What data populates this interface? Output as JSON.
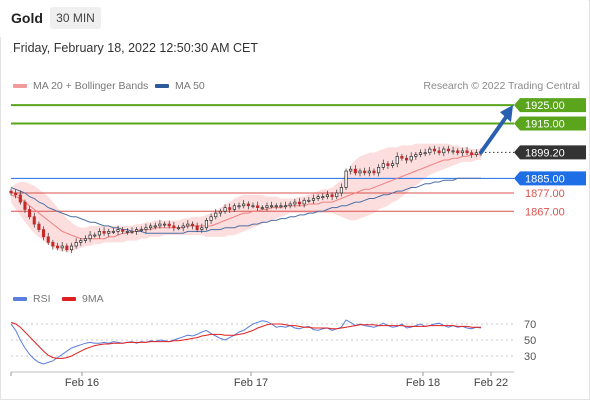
{
  "header": {
    "symbol": "Gold",
    "timeframe": "30 MIN"
  },
  "datetime": "Friday, February 18, 2022 12:50:30 AM CET",
  "legend": {
    "ma20_label": "MA 20 + Bollinger Bands",
    "ma50_label": "MA 50",
    "rsi_label": "RSI",
    "ma9_label": "9MA"
  },
  "credit": "Research © 2022 Trading Central",
  "colors": {
    "green": "#5aa51c",
    "blue": "#1e6fe6",
    "red": "#d9534f",
    "dark": "#333333",
    "bollinger_fill": "#fbd3d3",
    "ma20": "#f08080",
    "ma50": "#4b6fa5",
    "rsi": "#5b7fdc",
    "ma9": "#e02020",
    "arrow": "#2a5fb0"
  },
  "chart_data": [
    {
      "type": "candlestick",
      "title": "",
      "xlabel": "",
      "ylabel": "",
      "x_tick_labels": [
        "Feb 16",
        "Feb 17",
        "Feb 18",
        "Feb 22"
      ],
      "ylim": [
        1836,
        1930
      ],
      "grid": false,
      "legend_position": "top-left",
      "levels": [
        {
          "value": 1925.0,
          "label": "1925.00",
          "style": "green-line"
        },
        {
          "value": 1915.0,
          "label": "1915.00",
          "style": "green-line"
        },
        {
          "value": 1899.2,
          "label": "1899.20",
          "style": "current-price"
        },
        {
          "value": 1885.0,
          "label": "1885.00",
          "style": "blue-line"
        },
        {
          "value": 1877.0,
          "label": "1877.00",
          "style": "red-line"
        },
        {
          "value": 1867.0,
          "label": "1867.00",
          "style": "red-line"
        }
      ],
      "close": [
        1877,
        1876,
        1872,
        1868,
        1864,
        1860,
        1857,
        1853,
        1850,
        1848,
        1847,
        1848,
        1846,
        1848,
        1850,
        1851,
        1852,
        1854,
        1854,
        1856,
        1855,
        1856,
        1856,
        1857,
        1856,
        1856,
        1856,
        1857,
        1857,
        1858,
        1859,
        1859,
        1860,
        1860,
        1859,
        1858,
        1858,
        1859,
        1860,
        1859,
        1857,
        1858,
        1862,
        1864,
        1866,
        1867,
        1869,
        1868,
        1870,
        1870,
        1871,
        1870,
        1870,
        1869,
        1869,
        1870,
        1870,
        1870,
        1870,
        1870,
        1871,
        1872,
        1871,
        1873,
        1873,
        1874,
        1875,
        1875,
        1876,
        1875,
        1877,
        1880,
        1889,
        1890,
        1888,
        1889,
        1888,
        1889,
        1888,
        1891,
        1893,
        1892,
        1893,
        1897,
        1896,
        1895,
        1897,
        1898,
        1899,
        1899,
        1901,
        1900,
        1899,
        1901,
        1900,
        1900,
        1899,
        1900,
        1899,
        1898,
        1899,
        1899.2
      ],
      "ma20": [
        1876,
        1875,
        1874,
        1872,
        1870,
        1868,
        1866,
        1864,
        1862,
        1860,
        1858,
        1856,
        1855,
        1854,
        1853,
        1852,
        1852,
        1852,
        1852,
        1852,
        1852,
        1853,
        1853,
        1854,
        1855,
        1855,
        1856,
        1856,
        1857,
        1857,
        1857,
        1858,
        1858,
        1858,
        1858,
        1858,
        1858,
        1858,
        1859,
        1859,
        1859,
        1859,
        1859,
        1859,
        1860,
        1861,
        1862,
        1863,
        1864,
        1865,
        1866,
        1866,
        1867,
        1867,
        1868,
        1868,
        1869,
        1869,
        1869,
        1870,
        1870,
        1870,
        1870,
        1870,
        1871,
        1871,
        1871,
        1872,
        1872,
        1872,
        1873,
        1874,
        1875,
        1876,
        1877,
        1878,
        1879,
        1879,
        1880,
        1881,
        1882,
        1883,
        1884,
        1885,
        1886,
        1887,
        1888,
        1889,
        1890,
        1891,
        1892,
        1893,
        1894,
        1895,
        1895,
        1896,
        1896,
        1897,
        1897,
        1898,
        1898,
        1898
      ],
      "boll_upper": [
        1880,
        1882,
        1883,
        1883,
        1882,
        1881,
        1879,
        1877,
        1875,
        1872,
        1869,
        1866,
        1863,
        1861,
        1859,
        1858,
        1858,
        1859,
        1859,
        1859,
        1859,
        1859,
        1859,
        1859,
        1859,
        1859,
        1859,
        1860,
        1860,
        1861,
        1861,
        1862,
        1862,
        1862,
        1862,
        1862,
        1862,
        1863,
        1863,
        1864,
        1864,
        1864,
        1865,
        1866,
        1867,
        1869,
        1871,
        1872,
        1874,
        1875,
        1876,
        1876,
        1876,
        1876,
        1876,
        1875,
        1875,
        1875,
        1874,
        1874,
        1874,
        1874,
        1875,
        1875,
        1876,
        1877,
        1878,
        1879,
        1879,
        1880,
        1882,
        1884,
        1888,
        1892,
        1895,
        1897,
        1898,
        1899,
        1899,
        1900,
        1901,
        1902,
        1902,
        1902,
        1903,
        1903,
        1903,
        1904,
        1904,
        1904,
        1904,
        1904,
        1904,
        1904,
        1904,
        1903,
        1903,
        1902,
        1902,
        1901,
        1901,
        1901
      ],
      "boll_lower": [
        1872,
        1868,
        1865,
        1861,
        1858,
        1855,
        1853,
        1851,
        1849,
        1847,
        1846,
        1845,
        1845,
        1845,
        1846,
        1847,
        1848,
        1848,
        1849,
        1849,
        1850,
        1850,
        1850,
        1850,
        1850,
        1851,
        1851,
        1851,
        1852,
        1852,
        1853,
        1853,
        1853,
        1854,
        1854,
        1854,
        1854,
        1854,
        1854,
        1854,
        1854,
        1854,
        1853,
        1853,
        1853,
        1853,
        1853,
        1854,
        1854,
        1855,
        1856,
        1857,
        1858,
        1859,
        1860,
        1861,
        1862,
        1863,
        1864,
        1865,
        1866,
        1866,
        1866,
        1866,
        1866,
        1866,
        1866,
        1866,
        1866,
        1866,
        1865,
        1864,
        1863,
        1862,
        1862,
        1863,
        1864,
        1865,
        1866,
        1868,
        1869,
        1870,
        1872,
        1873,
        1875,
        1877,
        1879,
        1881,
        1883,
        1885,
        1887,
        1888,
        1889,
        1890,
        1891,
        1892,
        1893,
        1894,
        1894,
        1894,
        1895,
        1895
      ],
      "ma50": [
        1880,
        1879,
        1878,
        1877,
        1875,
        1874,
        1872,
        1871,
        1869,
        1868,
        1867,
        1866,
        1865,
        1864,
        1864,
        1863,
        1862,
        1861,
        1861,
        1860,
        1859,
        1859,
        1858,
        1858,
        1857,
        1857,
        1856,
        1856,
        1856,
        1855,
        1855,
        1855,
        1855,
        1855,
        1855,
        1855,
        1855,
        1855,
        1856,
        1856,
        1856,
        1856,
        1856,
        1857,
        1857,
        1857,
        1858,
        1858,
        1858,
        1859,
        1859,
        1859,
        1860,
        1860,
        1861,
        1861,
        1862,
        1862,
        1863,
        1863,
        1864,
        1864,
        1865,
        1865,
        1866,
        1866,
        1867,
        1867,
        1868,
        1869,
        1869,
        1870,
        1870,
        1871,
        1872,
        1872,
        1873,
        1874,
        1874,
        1875,
        1876,
        1876,
        1877,
        1878,
        1878,
        1879,
        1880,
        1880,
        1881,
        1882,
        1882,
        1883,
        1883,
        1884,
        1884,
        1884,
        1885,
        1885,
        1885,
        1885,
        1885,
        1885
      ]
    },
    {
      "type": "line",
      "title": "",
      "xlabel": "",
      "ylabel": "",
      "ylim": [
        15,
        85
      ],
      "y_tick_labels": [
        "70",
        "50",
        "30"
      ],
      "y_ticks": [
        70,
        50,
        30
      ],
      "series": [
        {
          "name": "RSI",
          "values": [
            70,
            62,
            50,
            40,
            32,
            26,
            22,
            20,
            22,
            24,
            28,
            32,
            36,
            40,
            42,
            44,
            46,
            47,
            46,
            46,
            47,
            46,
            48,
            47,
            46,
            47,
            48,
            46,
            48,
            47,
            49,
            48,
            50,
            49,
            48,
            50,
            52,
            54,
            56,
            55,
            57,
            60,
            62,
            58,
            55,
            52,
            50,
            53,
            56,
            60,
            62,
            66,
            70,
            72,
            74,
            73,
            70,
            66,
            67,
            66,
            68,
            65,
            64,
            66,
            67,
            63,
            62,
            64,
            65,
            62,
            64,
            66,
            75,
            72,
            68,
            70,
            68,
            67,
            66,
            68,
            71,
            68,
            66,
            67,
            70,
            65,
            66,
            68,
            70,
            67,
            68,
            70,
            71,
            68,
            66,
            68,
            66,
            67,
            65,
            64,
            66,
            65
          ]
        },
        {
          "name": "9MA",
          "values": [
            72,
            70,
            66,
            60,
            54,
            48,
            42,
            36,
            31,
            28,
            27,
            27,
            28,
            30,
            33,
            36,
            39,
            41,
            43,
            44,
            45,
            45,
            46,
            46,
            46,
            47,
            47,
            47,
            47,
            47,
            48,
            48,
            48,
            48,
            48,
            49,
            49,
            50,
            51,
            52,
            53,
            55,
            56,
            57,
            57,
            57,
            56,
            56,
            56,
            57,
            58,
            60,
            62,
            65,
            67,
            69,
            70,
            70,
            70,
            69,
            68,
            68,
            67,
            66,
            66,
            65,
            65,
            65,
            65,
            64,
            64,
            65,
            66,
            67,
            68,
            69,
            69,
            69,
            69,
            68,
            68,
            68,
            68,
            68,
            68,
            67,
            67,
            67,
            67,
            67,
            68,
            68,
            68,
            68,
            68,
            68,
            67,
            67,
            67,
            66,
            66,
            66
          ]
        }
      ]
    }
  ]
}
